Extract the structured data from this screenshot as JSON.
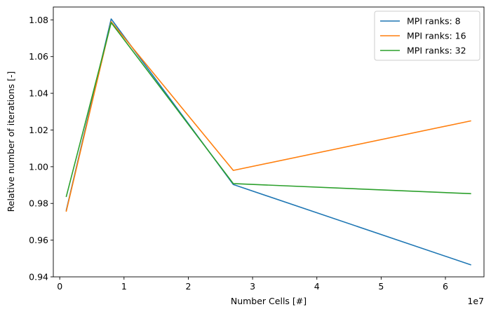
{
  "chart_data": {
    "type": "line",
    "title": "",
    "xlabel": "Number Cells [#]",
    "ylabel": "Relative number of iterations [-]",
    "x_offset_label": "1e7",
    "xlim": [
      -0.1,
      6.6
    ],
    "ylim": [
      0.94,
      1.087
    ],
    "xticks": [
      0,
      1,
      2,
      3,
      4,
      5,
      6
    ],
    "xtick_labels": [
      "0",
      "1",
      "2",
      "3",
      "4",
      "5",
      "6"
    ],
    "yticks": [
      0.94,
      0.96,
      0.98,
      1.0,
      1.02,
      1.04,
      1.06,
      1.08
    ],
    "ytick_labels": [
      "0.94",
      "0.96",
      "0.98",
      "1.00",
      "1.02",
      "1.04",
      "1.06",
      "1.08"
    ],
    "grid": false,
    "legend_position": "top-right",
    "x": [
      0.1,
      0.8,
      2.7,
      6.4
    ],
    "series": [
      {
        "name": "MPI ranks: 8",
        "color": "#1f77b4",
        "values": [
          0.976,
          1.0805,
          0.9903,
          0.9465
        ]
      },
      {
        "name": "MPI ranks: 16",
        "color": "#ff7f0e",
        "values": [
          0.9755,
          1.079,
          0.998,
          1.025
        ]
      },
      {
        "name": "MPI ranks: 32",
        "color": "#2ca02c",
        "values": [
          0.9835,
          1.0785,
          0.9908,
          0.9853
        ]
      }
    ]
  }
}
